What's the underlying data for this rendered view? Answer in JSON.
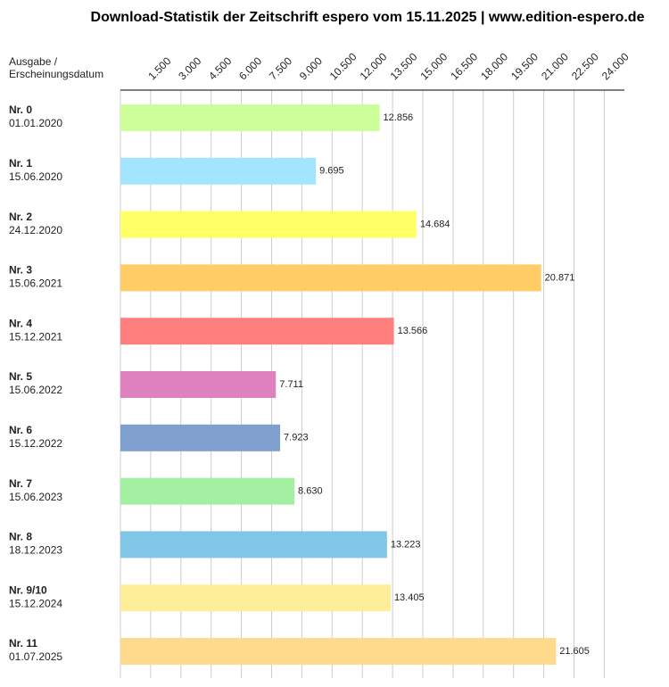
{
  "chart_data": {
    "type": "hbar",
    "title": "Download-Statistik der Zeitschrift espero vom 15.11.2025 | www.edition-espero.de",
    "y_label": [
      "Ausgabe /",
      "Erscheinungsdatum"
    ],
    "categories": [
      "Nr. 0",
      "Nr. 1",
      "Nr. 2",
      "Nr. 3",
      "Nr. 4",
      "Nr. 5",
      "Nr. 6",
      "Nr. 7",
      "Nr. 8",
      "Nr. 9/10",
      "Nr. 11"
    ],
    "dates": [
      "01.01.2020",
      "15.06.2020",
      "24.12.2020",
      "15.06.2021",
      "15.12.2021",
      "15.06.2022",
      "15.12.2022",
      "15.06.2023",
      "18.12.2023",
      "15.12.2024",
      "01.07.2025"
    ],
    "values": [
      12856,
      9695,
      14684,
      20871,
      13566,
      7711,
      7923,
      8630,
      13223,
      13405,
      21605
    ],
    "value_labels": [
      "12.856",
      "9.695",
      "14.684",
      "20.871",
      "13.566",
      "7.711",
      "7.923",
      "8.630",
      "13.223",
      "13.405",
      "21.605"
    ],
    "colors": [
      "#ccff99",
      "#a3e4ff",
      "#ffff66",
      "#ffcc66",
      "#ff7f7f",
      "#df80bf",
      "#7f9fcf",
      "#a3f0a3",
      "#80c6e6",
      "#ffee99",
      "#ffd98c"
    ],
    "xlim": [
      0,
      25000
    ],
    "xticks": [
      {
        "value": 1500,
        "label": "1.500"
      },
      {
        "value": 3000,
        "label": "3.000"
      },
      {
        "value": 4500,
        "label": "4.500"
      },
      {
        "value": 6000,
        "label": "6.000"
      },
      {
        "value": 7500,
        "label": "7.500"
      },
      {
        "value": 9000,
        "label": "9.000"
      },
      {
        "value": 10500,
        "label": "10.500"
      },
      {
        "value": 12000,
        "label": "12.000"
      },
      {
        "value": 13500,
        "label": "13.500"
      },
      {
        "value": 15000,
        "label": "15.000"
      },
      {
        "value": 16500,
        "label": "16.500"
      },
      {
        "value": 18000,
        "label": "18.000"
      },
      {
        "value": 19500,
        "label": "19.500"
      },
      {
        "value": 21000,
        "label": "21.000"
      },
      {
        "value": 22500,
        "label": "22.500"
      },
      {
        "value": 24000,
        "label": "24.000"
      }
    ],
    "grid": true
  }
}
